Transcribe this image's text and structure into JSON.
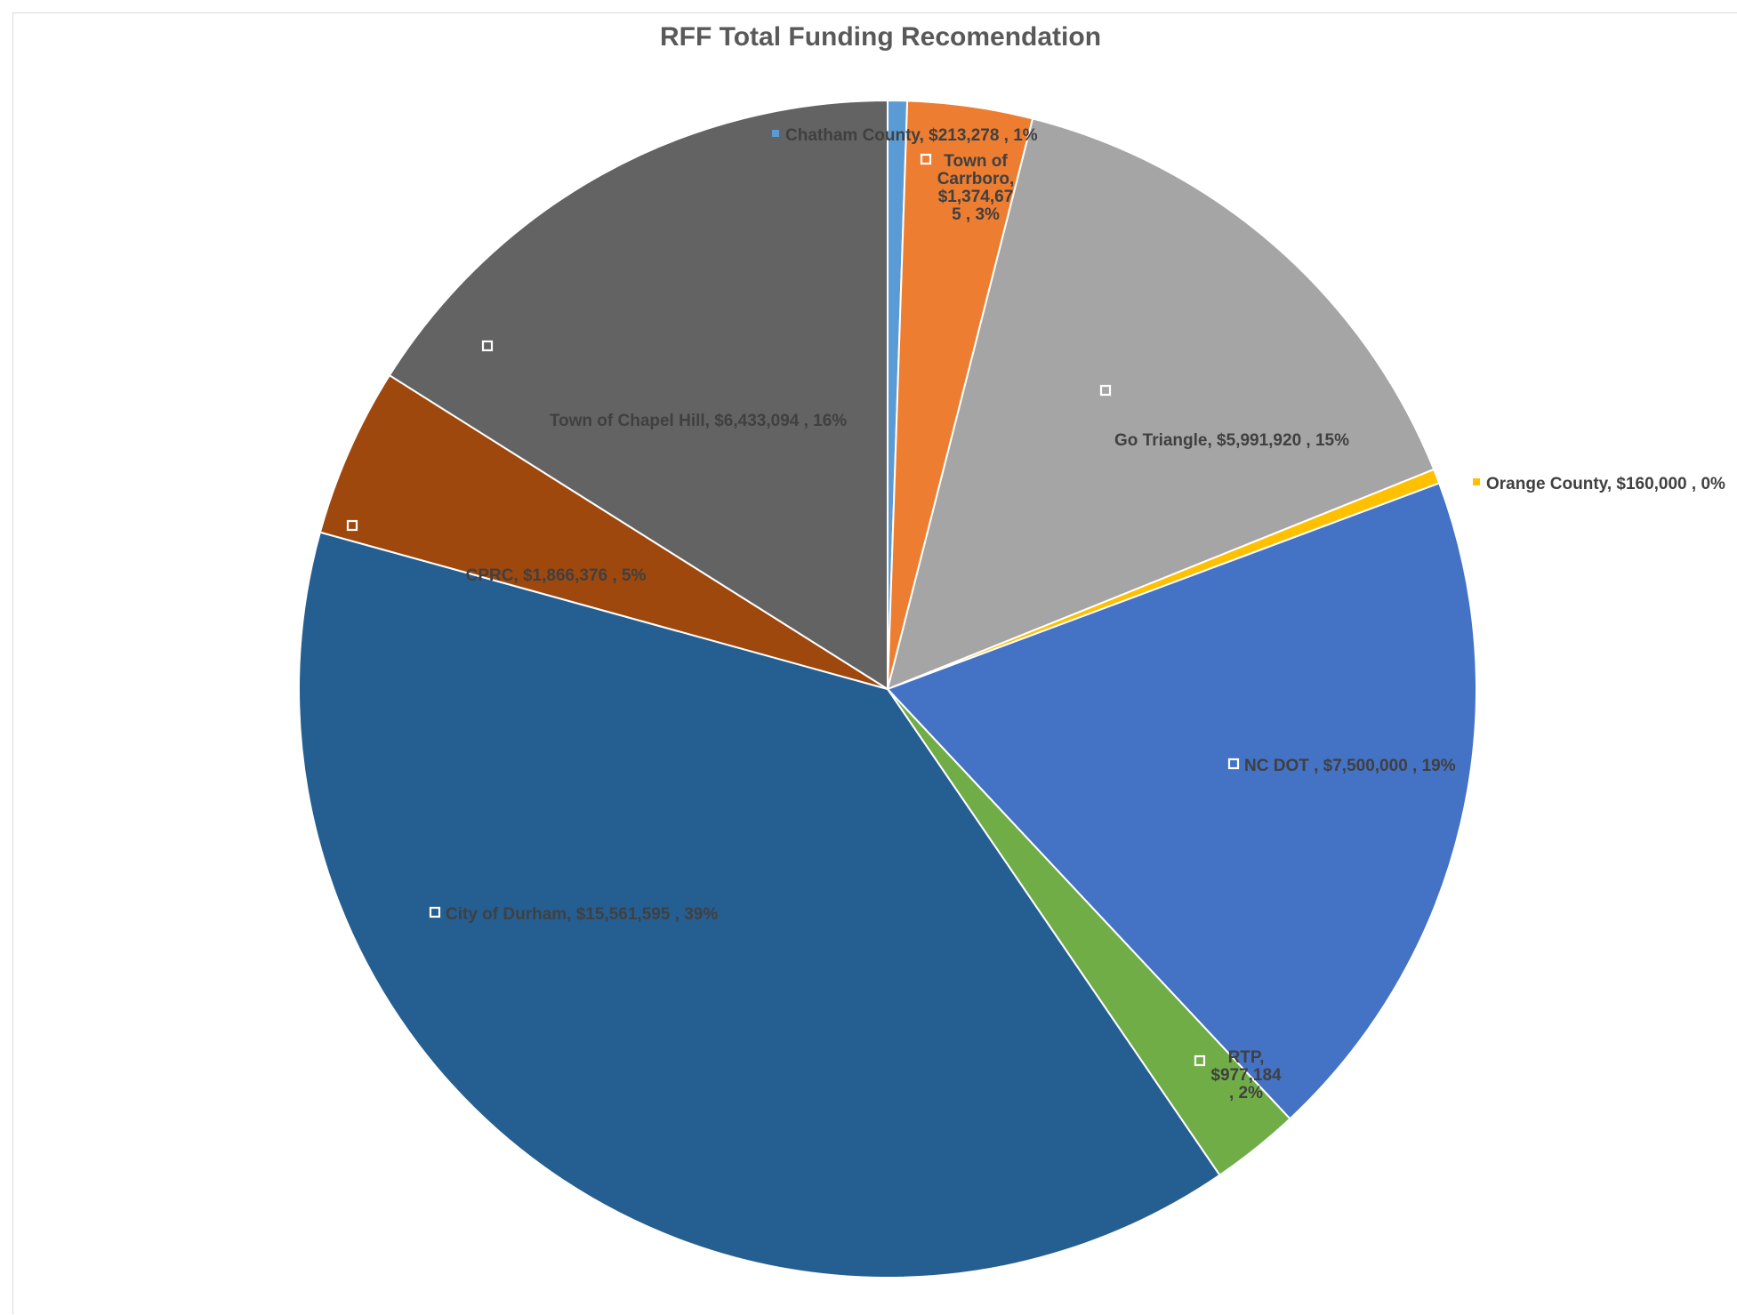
{
  "chart_data": {
    "type": "pie",
    "title": "RFF Total Funding Recomendation",
    "slices": [
      {
        "name": "Chatham County",
        "value": 213278,
        "value_label": "$213,278",
        "percent_label": "1%",
        "color": "#5B9BD5"
      },
      {
        "name": "Town of Carrboro",
        "value": 1374675,
        "value_label": "$1,374,675",
        "percent_label": "3%",
        "color": "#ED7D31"
      },
      {
        "name": "Go Triangle",
        "value": 5991920,
        "value_label": "$5,991,920",
        "percent_label": "15%",
        "color": "#A5A5A5"
      },
      {
        "name": "Orange County",
        "value": 160000,
        "value_label": "$160,000",
        "percent_label": "0%",
        "color": "#FFC000"
      },
      {
        "name": "NC DOT",
        "value": 7500000,
        "value_label": "$7,500,000",
        "percent_label": "19%",
        "color": "#4472C4"
      },
      {
        "name": "RTP",
        "value": 977184,
        "value_label": "$977,184",
        "percent_label": "2%",
        "color": "#70AD47"
      },
      {
        "name": "City of Durham",
        "value": 15561595,
        "value_label": "$15,561,595",
        "percent_label": "39%",
        "color": "#255E91"
      },
      {
        "name": "CPRC",
        "value": 1866376,
        "value_label": "$1,866,376",
        "percent_label": "5%",
        "color": "#9E480E"
      },
      {
        "name": "Town of Chapel Hill",
        "value": 6433094,
        "value_label": "$6,433,094",
        "percent_label": "16%",
        "color": "#636363"
      }
    ],
    "data_labels": [
      [
        "Chatham County,  $213,278 , 1%"
      ],
      [
        "Town of",
        "Carrboro,",
        "$1,374,67",
        "5 , 3%"
      ],
      [
        "Go Triangle,  $5,991,920 , 15%"
      ],
      [
        "Orange County,  $160,000 , 0%"
      ],
      [
        "NC DOT ,  $7,500,000 , 19%"
      ],
      [
        "RTP,",
        "$977,184",
        ", 2%"
      ],
      [
        "City of Durham,  $15,561,595 , 39%"
      ],
      [
        "CPRC,  $1,866,376 , 5%"
      ],
      [
        "Town of Chapel Hill,  $6,433,094 , 16%"
      ]
    ],
    "label_color": "#404040",
    "border_color": "#ffffff",
    "legend": "none"
  }
}
